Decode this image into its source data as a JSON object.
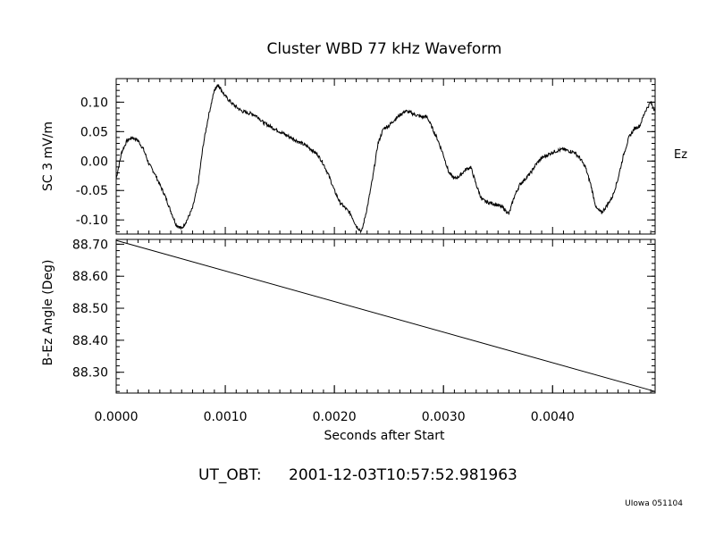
{
  "title": "Cluster WBD 77 kHz Waveform",
  "footer": {
    "ut_label": "UT_OBT:",
    "ut_value": "2001-12-03T10:57:52.981963",
    "credit": "UIowa 051104"
  },
  "chart_data": [
    {
      "type": "line",
      "ylabel": "SC 3 mV/m",
      "series_label": "Ez",
      "xlim": [
        0.0,
        0.00494
      ],
      "ylim": [
        -0.124,
        0.14
      ],
      "yticks": [
        0.1,
        0.05,
        0.0,
        -0.05,
        -0.1
      ],
      "ytick_labels": [
        "0.10",
        "0.05",
        "0.00",
        "-0.05",
        "-0.10"
      ],
      "series": [
        {
          "x": [
            0.0,
            5e-05,
            0.0001,
            0.00015,
            0.0002,
            0.00025,
            0.0003,
            0.00035,
            0.0004,
            0.00045,
            0.0005,
            0.00055,
            0.0006,
            0.00065,
            0.0007,
            0.00075,
            0.0008,
            0.00085,
            0.0009,
            0.00093,
            0.00095,
            0.001,
            0.00105,
            0.0011,
            0.00115,
            0.0012,
            0.00125,
            0.0013,
            0.00135,
            0.0014,
            0.00145,
            0.0015,
            0.00155,
            0.0016,
            0.00165,
            0.0017,
            0.00175,
            0.0018,
            0.00185,
            0.0019,
            0.00195,
            0.002,
            0.00205,
            0.0021,
            0.00215,
            0.0022,
            0.00225,
            0.0023,
            0.00235,
            0.0024,
            0.00245,
            0.0025,
            0.00255,
            0.0026,
            0.00265,
            0.0027,
            0.00275,
            0.0028,
            0.00285,
            0.0029,
            0.00295,
            0.003,
            0.00305,
            0.0031,
            0.00315,
            0.0032,
            0.00325,
            0.0033,
            0.00335,
            0.0034,
            0.00345,
            0.0035,
            0.00355,
            0.0036,
            0.00365,
            0.0037,
            0.00375,
            0.0038,
            0.00385,
            0.0039,
            0.00395,
            0.004,
            0.00405,
            0.0041,
            0.00415,
            0.0042,
            0.00425,
            0.0043,
            0.00435,
            0.0044,
            0.00445,
            0.0045,
            0.00455,
            0.0046,
            0.00465,
            0.0047,
            0.00475,
            0.0048,
            0.00485,
            0.0049,
            0.00494
          ],
          "y": [
            -0.03,
            0.015,
            0.035,
            0.04,
            0.035,
            0.02,
            -0.005,
            -0.02,
            -0.04,
            -0.06,
            -0.085,
            -0.108,
            -0.115,
            -0.1,
            -0.08,
            -0.04,
            0.03,
            0.08,
            0.12,
            0.13,
            0.125,
            0.11,
            0.1,
            0.092,
            0.085,
            0.082,
            0.08,
            0.075,
            0.065,
            0.06,
            0.055,
            0.05,
            0.045,
            0.04,
            0.035,
            0.03,
            0.025,
            0.018,
            0.01,
            -0.005,
            -0.025,
            -0.05,
            -0.07,
            -0.08,
            -0.09,
            -0.11,
            -0.12,
            -0.08,
            -0.03,
            0.03,
            0.055,
            0.06,
            0.07,
            0.078,
            0.085,
            0.082,
            0.078,
            0.075,
            0.075,
            0.055,
            0.035,
            0.01,
            -0.02,
            -0.03,
            -0.025,
            -0.015,
            -0.01,
            -0.04,
            -0.065,
            -0.07,
            -0.072,
            -0.075,
            -0.08,
            -0.09,
            -0.06,
            -0.04,
            -0.03,
            -0.02,
            -0.005,
            0.005,
            0.01,
            0.015,
            0.018,
            0.02,
            0.017,
            0.015,
            0.005,
            -0.01,
            -0.04,
            -0.08,
            -0.088,
            -0.075,
            -0.06,
            -0.03,
            0.01,
            0.04,
            0.055,
            0.06,
            0.085,
            0.1,
            0.085
          ]
        }
      ]
    },
    {
      "type": "line",
      "ylabel": "B-Ez Angle (Deg)",
      "xlabel": "Seconds after Start",
      "xlim": [
        0.0,
        0.00494
      ],
      "ylim": [
        88.235,
        88.715
      ],
      "yticks": [
        88.7,
        88.6,
        88.5,
        88.4,
        88.3
      ],
      "ytick_labels": [
        "88.70",
        "88.60",
        "88.50",
        "88.40",
        "88.30"
      ],
      "xticks": [
        0.0,
        0.001,
        0.002,
        0.003,
        0.004
      ],
      "xtick_labels": [
        "0.0000",
        "0.0010",
        "0.0020",
        "0.0030",
        "0.0040"
      ],
      "series": [
        {
          "x": [
            0.0,
            0.00494
          ],
          "y": [
            88.712,
            88.24
          ]
        }
      ]
    }
  ]
}
